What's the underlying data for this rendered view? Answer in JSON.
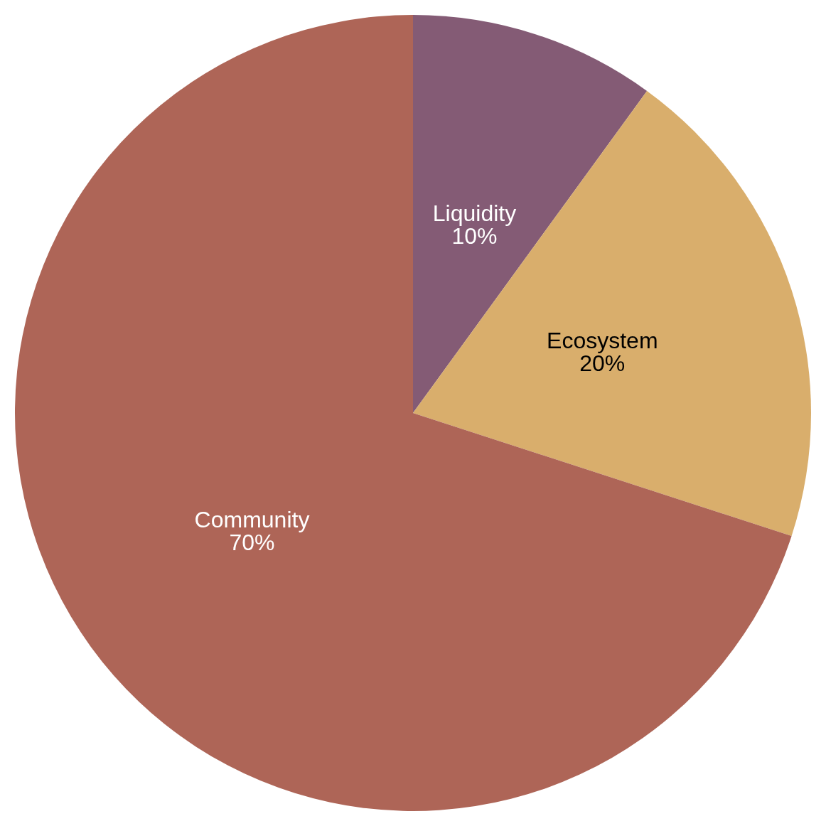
{
  "chart_data": {
    "type": "pie",
    "categories": [
      "Liquidity",
      "Ecosystem",
      "Community"
    ],
    "values": [
      10,
      20,
      70
    ],
    "colors": [
      "#845b75",
      "#d9ae6c",
      "#ae6557"
    ],
    "value_labels": [
      "10%",
      "20%",
      "70%"
    ]
  }
}
